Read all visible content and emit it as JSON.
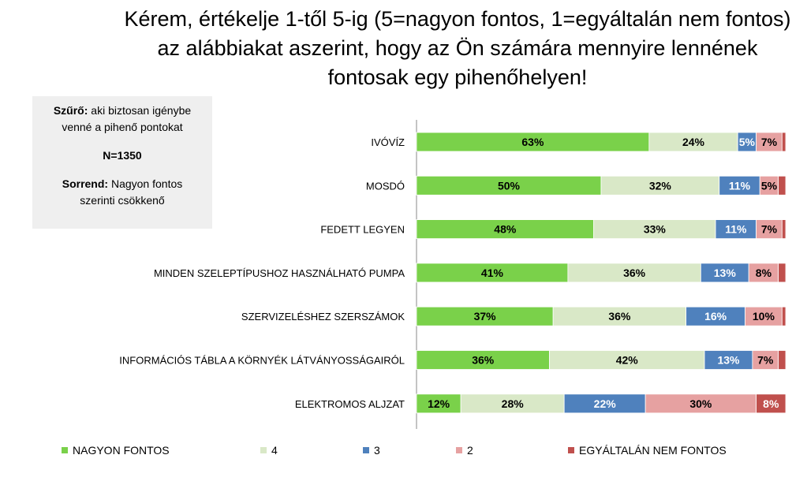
{
  "title_lines": [
    "Kérem, értékelje 1-től 5-ig (5=nagyon fontos, 1=egyáltalán nem fontos)",
    "az alábbiakat aszerint, hogy az Ön számára mennyire lennének",
    "fontosak egy pihenőhelyen!"
  ],
  "infobox": {
    "filter_label": "Szűrő:",
    "filter_text_1": " aki biztosan igénybe",
    "filter_text_2": "venné a pihenő pontokat",
    "n_text": "N=1350",
    "order_label": "Sorrend:",
    "order_text_1": " Nagyon fontos",
    "order_text_2": "szerinti csökkenő"
  },
  "chart_data": {
    "type": "bar",
    "orientation": "horizontal",
    "stacked": "percent",
    "title": "Kérem, értékelje 1-től 5-ig (5=nagyon fontos, 1=egyáltalán nem fontos) az alábbiakat aszerint, hogy az Ön számára mennyire lennének fontosak egy pihenőhelyen!",
    "categories": [
      "IVÓVÍZ",
      "MOSDÓ",
      "FEDETT LEGYEN",
      "MINDEN SZELEPTÍPUSHOZ HASZNÁLHATÓ PUMPA",
      "SZERVIZELÉSHEZ SZERSZÁMOK",
      "INFORMÁCIÓS TÁBLA A KÖRNYÉK LÁTVÁNYOSSÁGAIRÓL",
      "ELEKTROMOS ALJZAT"
    ],
    "series": [
      {
        "name": "NAGYON FONTOS",
        "color": "#7ad14a",
        "label_color": "#000000",
        "values": [
          63,
          50,
          48,
          41,
          37,
          36,
          12
        ]
      },
      {
        "name": "4",
        "color": "#d9e8c7",
        "label_color": "#000000",
        "values": [
          24,
          32,
          33,
          36,
          36,
          42,
          28
        ]
      },
      {
        "name": "3",
        "color": "#4f81bd",
        "label_color": "#ffffff",
        "values": [
          5,
          11,
          11,
          13,
          16,
          13,
          22
        ]
      },
      {
        "name": "2",
        "color": "#e6a1a1",
        "label_color": "#000000",
        "values": [
          7,
          5,
          7,
          8,
          10,
          7,
          30
        ]
      },
      {
        "name": "EGYÁLTALÁN NEM FONTOS",
        "color": "#c0504d",
        "label_color": "#ffffff",
        "values": [
          1,
          2,
          1,
          2,
          1,
          2,
          8
        ]
      }
    ],
    "labels": [
      [
        "63%",
        "24%",
        "5%",
        "7%",
        ""
      ],
      [
        "50%",
        "32%",
        "11%",
        "5%",
        ""
      ],
      [
        "48%",
        "33%",
        "11%",
        "7%",
        ""
      ],
      [
        "41%",
        "36%",
        "13%",
        "8%",
        ""
      ],
      [
        "37%",
        "36%",
        "16%",
        "10%",
        ""
      ],
      [
        "36%",
        "42%",
        "13%",
        "7%",
        ""
      ],
      [
        "12%",
        "28%",
        "22%",
        "30%",
        "8%"
      ]
    ],
    "xlim": [
      0,
      100
    ],
    "grid": false,
    "legend_position": "bottom"
  }
}
